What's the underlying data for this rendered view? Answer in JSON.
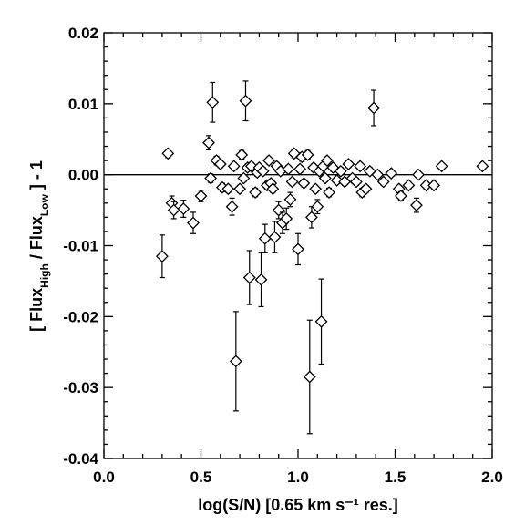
{
  "chart_data": {
    "type": "scatter",
    "title": "",
    "xlabel": "log(S/N) [0.65 km s⁻¹ res.]",
    "ylabel_parts": {
      "open": "[ Flux",
      "sub_high": "High",
      "mid": " / Flux",
      "sub_low": "Low",
      "close": " ] - 1"
    },
    "xlim": [
      0.0,
      2.0
    ],
    "ylim": [
      -0.04,
      0.02
    ],
    "x_ticks": [
      0.0,
      0.5,
      1.0,
      1.5,
      2.0
    ],
    "x_tick_labels": [
      "0.0",
      "0.5",
      "1.0",
      "1.5",
      "2.0"
    ],
    "y_ticks": [
      -0.04,
      -0.03,
      -0.02,
      -0.01,
      0.0,
      0.01,
      0.02
    ],
    "y_tick_labels": [
      "-0.04",
      "-0.03",
      "-0.02",
      "-0.01",
      "0.00",
      "0.01",
      "0.02"
    ],
    "reference_line_y": 0.0,
    "marker": "diamond-open",
    "grid": false,
    "points": [
      [
        0.3,
        -0.0115,
        0.003
      ],
      [
        0.33,
        0.003,
        0.0006
      ],
      [
        0.35,
        -0.004,
        0.001
      ],
      [
        0.36,
        -0.005,
        0.0012
      ],
      [
        0.41,
        -0.0048,
        0.0012
      ],
      [
        0.46,
        -0.0068,
        0.0015
      ],
      [
        0.5,
        -0.003,
        0.0008
      ],
      [
        0.54,
        0.0045,
        0.001
      ],
      [
        0.55,
        -0.0005,
        0.0006
      ],
      [
        0.56,
        0.0102,
        0.0028
      ],
      [
        0.58,
        0.002,
        0.0006
      ],
      [
        0.6,
        0.0015,
        0.0005
      ],
      [
        0.61,
        -0.0018,
        0.0006
      ],
      [
        0.64,
        -0.002,
        0.0005
      ],
      [
        0.66,
        -0.0045,
        0.0012
      ],
      [
        0.67,
        0.0012,
        0.0005
      ],
      [
        0.68,
        -0.0263,
        0.007
      ],
      [
        0.7,
        -0.002,
        0.0005
      ],
      [
        0.71,
        0.0028,
        0.0006
      ],
      [
        0.72,
        -0.0005,
        0.0005
      ],
      [
        0.73,
        0.0104,
        0.0028
      ],
      [
        0.74,
        0.001,
        0.0005
      ],
      [
        0.75,
        -0.0145,
        0.0038
      ],
      [
        0.76,
        0.0012,
        0.0005
      ],
      [
        0.78,
        -0.0025,
        0.0006
      ],
      [
        0.79,
        0.0003,
        0.0005
      ],
      [
        0.8,
        0.001,
        0.0005
      ],
      [
        0.81,
        -0.0148,
        0.0038
      ],
      [
        0.82,
        0.0005,
        0.0005
      ],
      [
        0.83,
        -0.009,
        0.002
      ],
      [
        0.84,
        -0.0015,
        0.0005
      ],
      [
        0.85,
        0.002,
        0.0005
      ],
      [
        0.86,
        -0.0012,
        0.0005
      ],
      [
        0.87,
        -0.002,
        0.0005
      ],
      [
        0.88,
        -0.0088,
        0.0022
      ],
      [
        0.89,
        0.0012,
        0.0005
      ],
      [
        0.9,
        -0.005,
        0.0012
      ],
      [
        0.91,
        0.0005,
        0.0005
      ],
      [
        0.92,
        -0.0068,
        0.0015
      ],
      [
        0.94,
        -0.0062,
        0.0015
      ],
      [
        0.95,
        0.0008,
        0.0005
      ],
      [
        0.96,
        -0.0035,
        0.001
      ],
      [
        0.97,
        -0.001,
        0.0005
      ],
      [
        0.98,
        0.003,
        0.0006
      ],
      [
        1.0,
        -0.0105,
        0.0022
      ],
      [
        1.01,
        0.0008,
        0.0005
      ],
      [
        1.02,
        0.0025,
        0.0006
      ],
      [
        1.03,
        -0.0012,
        0.0005
      ],
      [
        1.05,
        0.0028,
        0.0006
      ],
      [
        1.06,
        -0.0285,
        0.008
      ],
      [
        1.07,
        -0.006,
        0.0015
      ],
      [
        1.08,
        0.001,
        0.0005
      ],
      [
        1.09,
        -0.002,
        0.0005
      ],
      [
        1.1,
        -0.0045,
        0.001
      ],
      [
        1.11,
        0.0005,
        0.0005
      ],
      [
        1.12,
        -0.0207,
        0.006
      ],
      [
        1.13,
        0.0012,
        0.0005
      ],
      [
        1.14,
        -0.0005,
        0.0005
      ],
      [
        1.15,
        0.002,
        0.0005
      ],
      [
        1.16,
        -0.0025,
        0.0006
      ],
      [
        1.18,
        0.001,
        0.0005
      ],
      [
        1.2,
        -0.0008,
        0.0005
      ],
      [
        1.22,
        0.0005,
        0.0005
      ],
      [
        1.24,
        -0.001,
        0.0005
      ],
      [
        1.26,
        0.0015,
        0.0005
      ],
      [
        1.28,
        -0.0005,
        0.0005
      ],
      [
        1.3,
        -0.001,
        0.0005
      ],
      [
        1.32,
        0.0012,
        0.0005
      ],
      [
        1.33,
        -0.0025,
        0.0006
      ],
      [
        1.35,
        -0.002,
        0.0005
      ],
      [
        1.37,
        0.0005,
        0.0005
      ],
      [
        1.39,
        0.0094,
        0.0025
      ],
      [
        1.41,
        0.0,
        0.0004
      ],
      [
        1.44,
        -0.001,
        0.0005
      ],
      [
        1.48,
        0.0002,
        0.0004
      ],
      [
        1.52,
        -0.002,
        0.0005
      ],
      [
        1.53,
        -0.003,
        0.0006
      ],
      [
        1.57,
        -0.0015,
        0.0005
      ],
      [
        1.61,
        -0.0043,
        0.001
      ],
      [
        1.62,
        0.0,
        0.0004
      ],
      [
        1.66,
        -0.0015,
        0.0005
      ],
      [
        1.7,
        -0.0015,
        0.0005
      ],
      [
        1.74,
        0.0012,
        0.0004
      ],
      [
        1.95,
        0.0012,
        0.0004
      ]
    ]
  }
}
